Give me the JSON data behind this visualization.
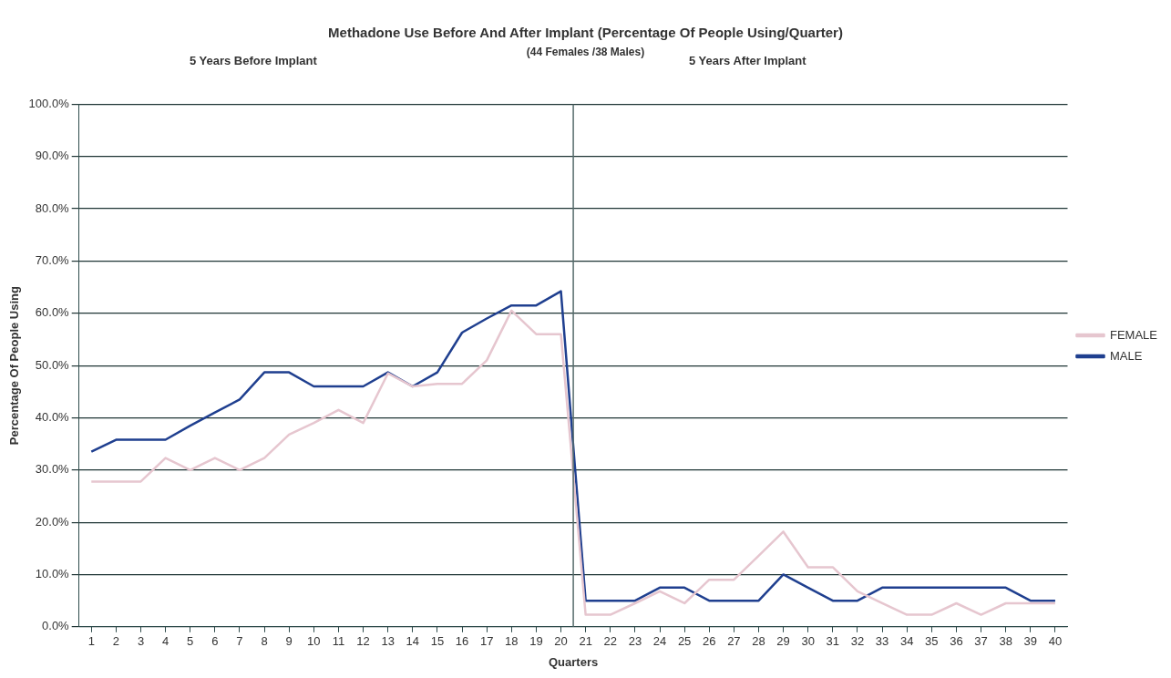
{
  "chart_data": {
    "type": "line",
    "title": "Methadone Use Before And After Implant (Percentage Of People Using/Quarter)",
    "subtitle": "(44 Females /38 Males)",
    "annotations": [
      "5 Years Before Implant",
      "5 Years After Implant"
    ],
    "xlabel": "Quarters",
    "ylabel": "Percentage Of People Using",
    "x": [
      1,
      2,
      3,
      4,
      5,
      6,
      7,
      8,
      9,
      10,
      11,
      12,
      13,
      14,
      15,
      16,
      17,
      18,
      19,
      20,
      21,
      22,
      23,
      24,
      25,
      26,
      27,
      28,
      29,
      30,
      31,
      32,
      33,
      34,
      35,
      36,
      37,
      38,
      39,
      40
    ],
    "xlim": [
      0.5,
      40.5
    ],
    "xticks": [
      1,
      2,
      3,
      4,
      5,
      6,
      7,
      8,
      9,
      10,
      11,
      12,
      13,
      14,
      15,
      16,
      17,
      18,
      19,
      20,
      21,
      22,
      23,
      24,
      25,
      26,
      27,
      28,
      29,
      30,
      31,
      32,
      33,
      34,
      35,
      36,
      37,
      38,
      39,
      40
    ],
    "ylim": [
      0,
      100
    ],
    "yticks": [
      {
        "value": 0,
        "label": "0.0%"
      },
      {
        "value": 10,
        "label": "10.0%"
      },
      {
        "value": 20,
        "label": "20.0%"
      },
      {
        "value": 30,
        "label": "30.0%"
      },
      {
        "value": 40,
        "label": "40.0%"
      },
      {
        "value": 50,
        "label": "50.0%"
      },
      {
        "value": 60,
        "label": "60.0%"
      },
      {
        "value": 70,
        "label": "70.0%"
      },
      {
        "value": 80,
        "label": "80.0%"
      },
      {
        "value": 90,
        "label": "90.0%"
      },
      {
        "value": 100,
        "label": "100.0%"
      }
    ],
    "series": [
      {
        "name": "FEMALE",
        "color": "#e6c6cf",
        "values": [
          27.8,
          27.8,
          27.8,
          32.3,
          30,
          32.3,
          30,
          32.3,
          36.8,
          39,
          41.5,
          39,
          48.5,
          46,
          46.5,
          46.5,
          51,
          60.5,
          56,
          56,
          2.3,
          2.3,
          4.5,
          6.8,
          4.5,
          9,
          9,
          13.6,
          18.2,
          11.4,
          11.4,
          6.8,
          4.5,
          2.3,
          2.3,
          4.5,
          2.3,
          4.5,
          4.5,
          4.5
        ]
      },
      {
        "name": "MALE",
        "color": "#1f3f8f",
        "values": [
          33.5,
          35.8,
          35.8,
          35.8,
          38.5,
          41,
          43.5,
          48.7,
          48.7,
          46,
          46,
          46,
          48.7,
          46,
          48.7,
          56.3,
          59,
          61.5,
          61.5,
          64.2,
          5,
          5,
          5,
          7.5,
          7.5,
          5,
          5,
          5,
          10,
          7.5,
          5,
          5,
          7.5,
          7.5,
          7.5,
          7.5,
          7.5,
          7.5,
          5,
          5
        ]
      }
    ],
    "ref_lines": [
      {
        "axis": "x",
        "value": 20.5,
        "color": "#556b6b"
      }
    ],
    "grid": "y",
    "legend": "right",
    "marker": "none",
    "line_style": "solid"
  }
}
